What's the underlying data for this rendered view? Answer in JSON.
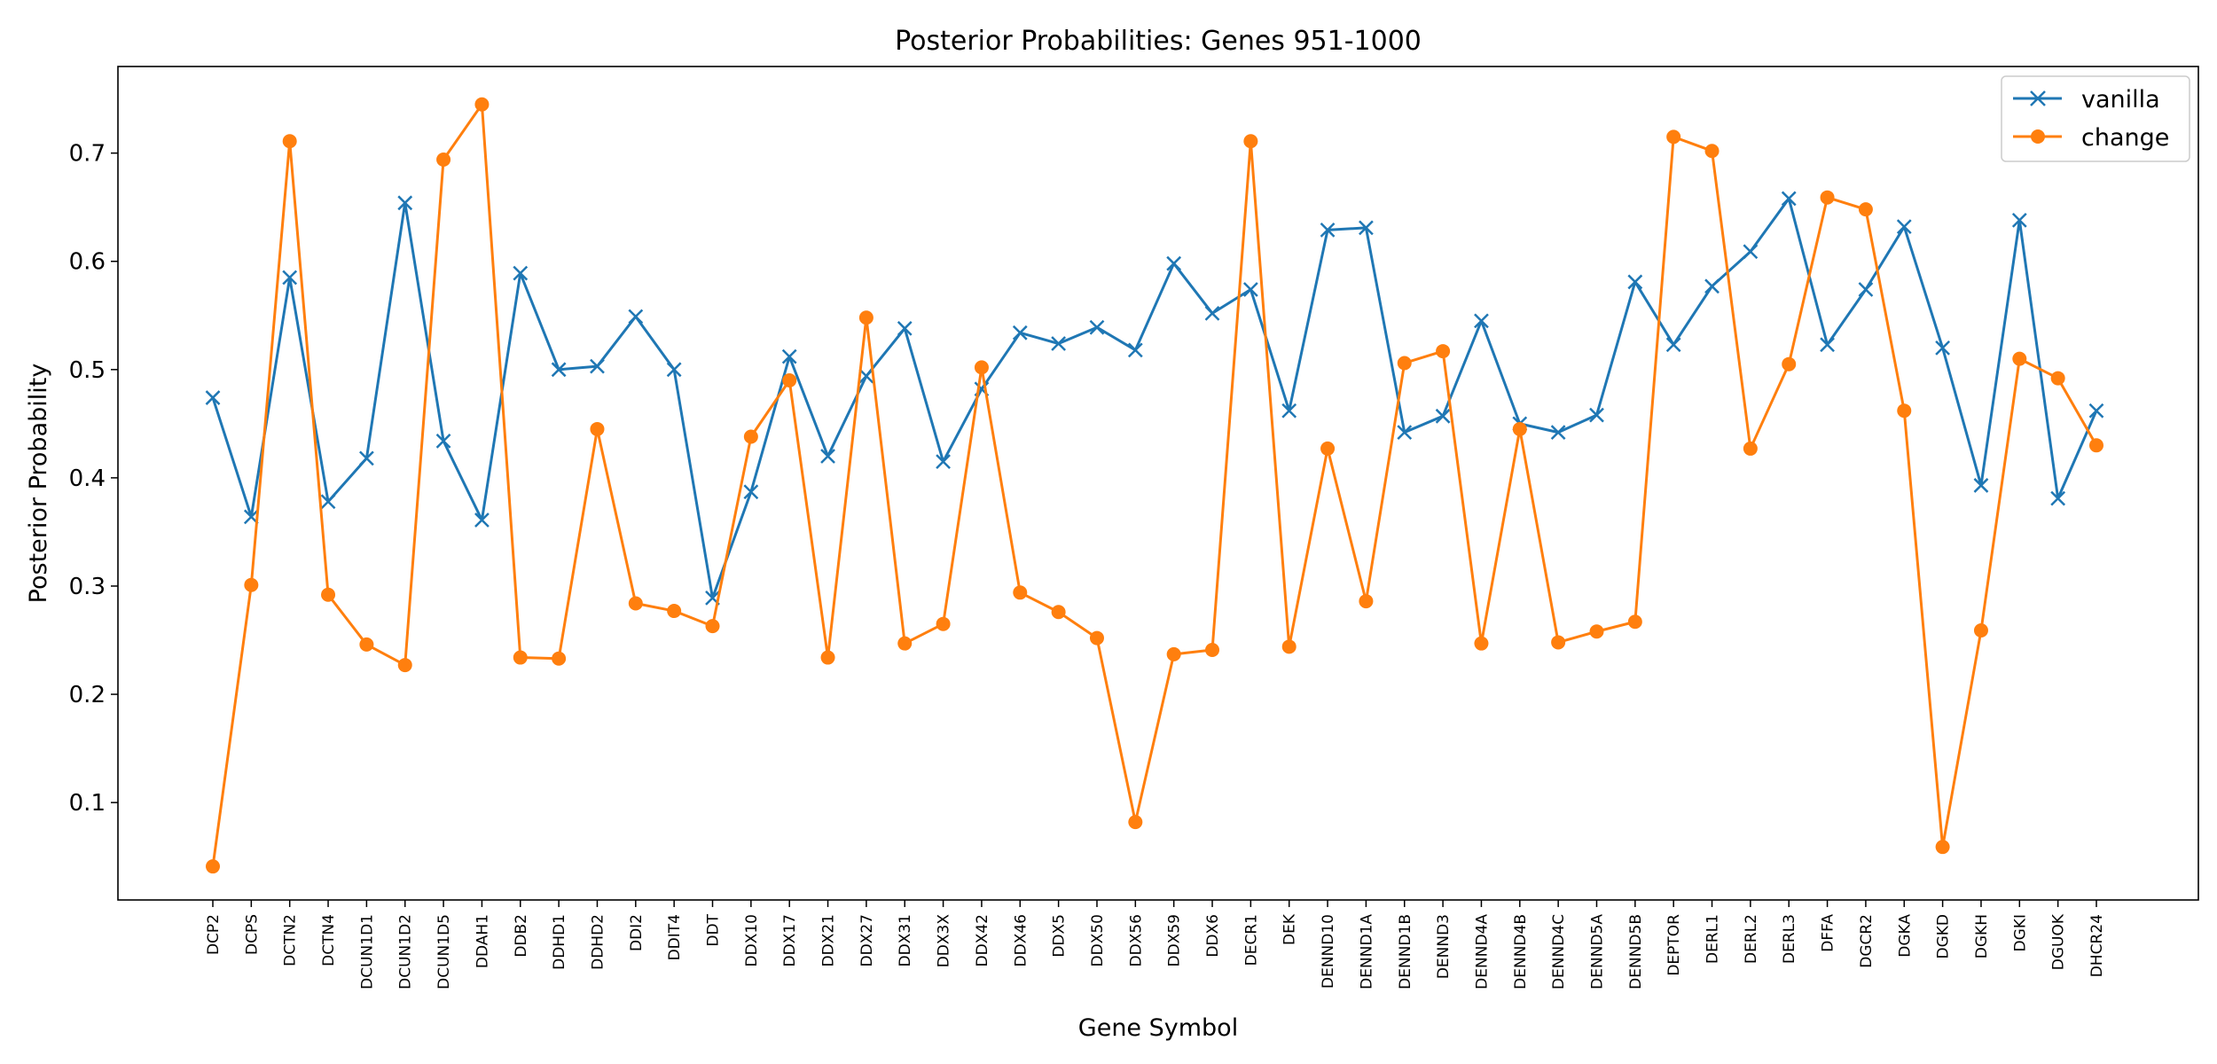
{
  "chart_data": {
    "type": "line",
    "title": "Posterior Probabilities: Genes 951-1000",
    "xlabel": "Gene Symbol",
    "ylabel": "Posterior Probability",
    "ylim": [
      0.01,
      0.78
    ],
    "yticks": [
      0.1,
      0.2,
      0.3,
      0.4,
      0.5,
      0.6,
      0.7
    ],
    "ytick_labels": [
      "0.1",
      "0.2",
      "0.3",
      "0.4",
      "0.5",
      "0.6",
      "0.7"
    ],
    "grid": false,
    "legend_position": "top-right",
    "categories": [
      "DCP2",
      "DCPS",
      "DCTN2",
      "DCTN4",
      "DCUN1D1",
      "DCUN1D2",
      "DCUN1D5",
      "DDAH1",
      "DDB2",
      "DDHD1",
      "DDHD2",
      "DDI2",
      "DDIT4",
      "DDT",
      "DDX10",
      "DDX17",
      "DDX21",
      "DDX27",
      "DDX31",
      "DDX3X",
      "DDX42",
      "DDX46",
      "DDX5",
      "DDX50",
      "DDX56",
      "DDX59",
      "DDX6",
      "DECR1",
      "DEK",
      "DENND10",
      "DENND1A",
      "DENND1B",
      "DENND3",
      "DENND4A",
      "DENND4B",
      "DENND4C",
      "DENND5A",
      "DENND5B",
      "DEPTOR",
      "DERL1",
      "DERL2",
      "DERL3",
      "DFFA",
      "DGCR2",
      "DGKA",
      "DGKD",
      "DGKH",
      "DGKI",
      "DGUOK",
      "DHCR24"
    ],
    "series": [
      {
        "name": "vanilla",
        "color": "#1f77b4",
        "marker": "x",
        "values": [
          0.474,
          0.364,
          0.585,
          0.378,
          0.418,
          0.654,
          0.434,
          0.361,
          0.589,
          0.5,
          0.503,
          0.549,
          0.5,
          0.289,
          0.387,
          0.512,
          0.42,
          0.494,
          0.538,
          0.415,
          0.482,
          0.534,
          0.524,
          0.539,
          0.518,
          0.598,
          0.552,
          0.574,
          0.462,
          0.629,
          0.631,
          0.442,
          0.457,
          0.545,
          0.45,
          0.442,
          0.458,
          0.581,
          0.523,
          0.577,
          0.609,
          0.658,
          0.523,
          0.574,
          0.632,
          0.52,
          0.393,
          0.638,
          0.381,
          0.462
        ]
      },
      {
        "name": "change",
        "color": "#ff7f0e",
        "marker": "o",
        "values": [
          0.041,
          0.301,
          0.711,
          0.292,
          0.246,
          0.227,
          0.694,
          0.745,
          0.234,
          0.233,
          0.445,
          0.284,
          0.277,
          0.263,
          0.438,
          0.49,
          0.234,
          0.548,
          0.247,
          0.265,
          0.502,
          0.294,
          0.276,
          0.252,
          0.082,
          0.237,
          0.241,
          0.711,
          0.244,
          0.427,
          0.286,
          0.506,
          0.517,
          0.247,
          0.445,
          0.248,
          0.258,
          0.267,
          0.715,
          0.702,
          0.427,
          0.505,
          0.659,
          0.648,
          0.462,
          0.059,
          0.259,
          0.51,
          0.492,
          0.43
        ]
      }
    ]
  }
}
